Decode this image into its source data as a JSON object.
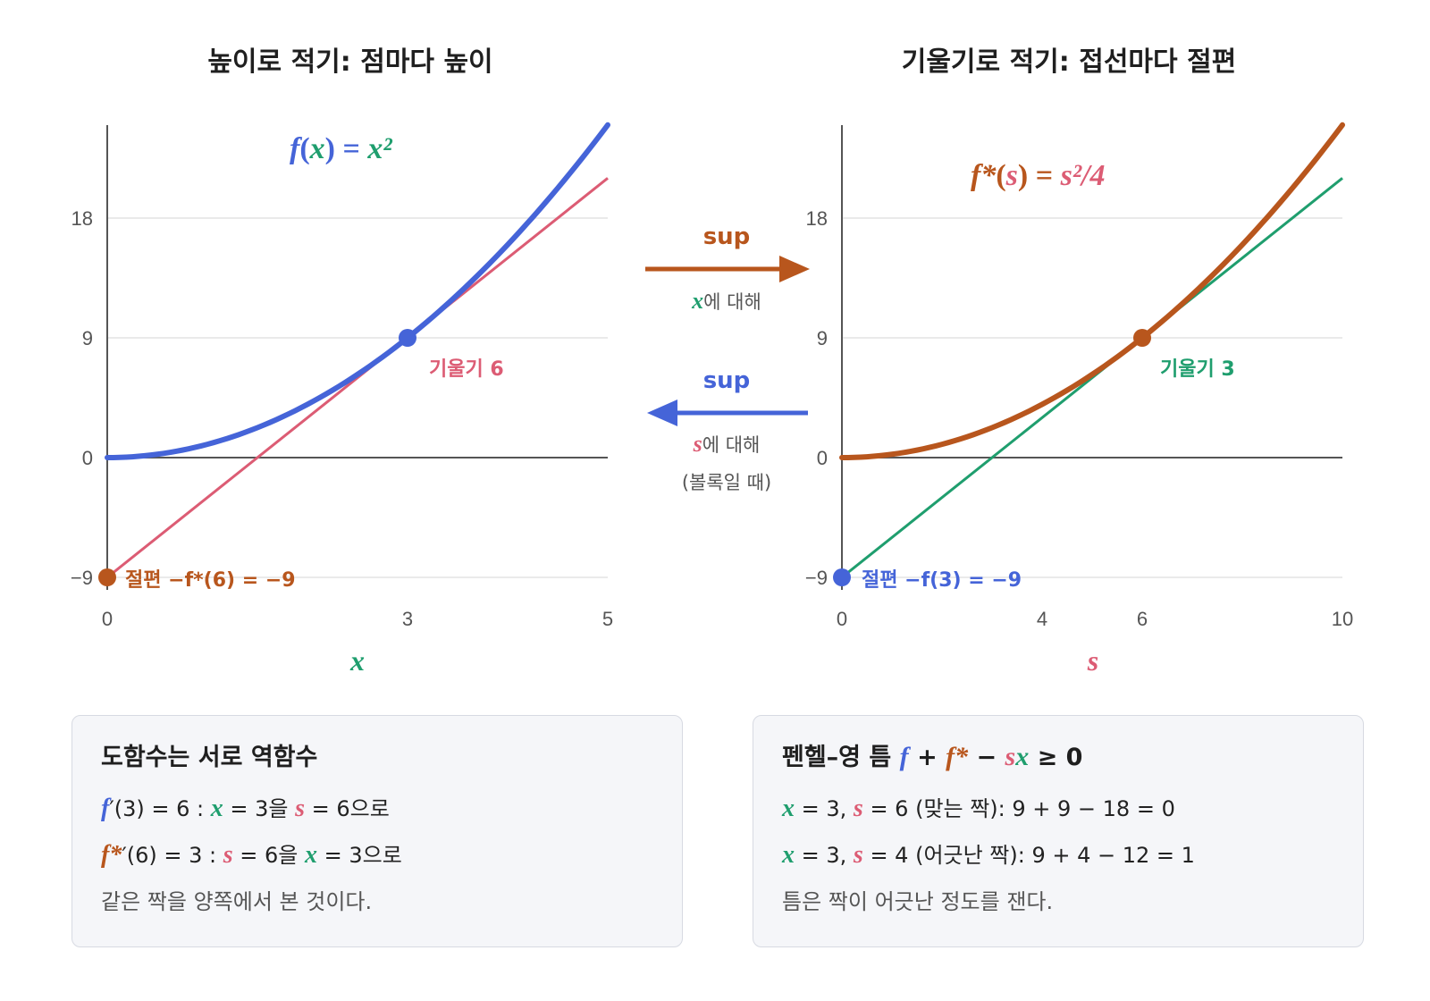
{
  "colors": {
    "blue": "#4564d8",
    "green": "#1f9e6e",
    "pink": "#dc5c74",
    "orange": "#b8561d",
    "grid": "#e3e3e3",
    "axis": "#555555"
  },
  "left_panel": {
    "title": "높이로 적기: 점마다 높이",
    "curve_label": {
      "f": "f",
      "open": "(",
      "var": "x",
      "close": ")",
      "eq": " = ",
      "rhs": "x²"
    },
    "tangent_label": "기울기 6",
    "intercept_label": "절편 −f*(6) = −9",
    "xlabel": "x"
  },
  "right_panel": {
    "title": "기울기로 적기: 접선마다 절편",
    "curve_label": {
      "f": "f*",
      "open": "(",
      "var": "s",
      "close": ")",
      "eq": " = ",
      "rhs": "s²/4"
    },
    "tangent_label": "기울기 3",
    "intercept_label": "절편 −f(3) = −9",
    "xlabel": "s"
  },
  "arrows": {
    "top": {
      "label": "sup",
      "var": "x",
      "sub": "에 대해",
      "direction": "right"
    },
    "bottom": {
      "label": "sup",
      "var": "s",
      "sub": "에 대해",
      "note": "(볼록일 때)",
      "direction": "left"
    }
  },
  "box_left": {
    "title": "도함수는 서로 역함수",
    "line1": {
      "f": "f",
      "rest1": "′(3) = 6 : ",
      "v1": "x",
      "mid": " = 3을 ",
      "v2": "s",
      "end": " = 6으로"
    },
    "line2": {
      "f": "f*",
      "rest1": "′(6) = 3 : ",
      "v1": "s",
      "mid": " = 6을 ",
      "v2": "x",
      "end": " = 3으로"
    },
    "note": "같은 짝을 양쪽에서 본 것이다."
  },
  "box_right": {
    "title_text": "펜헬–영 틈 ",
    "title_f": "f",
    "title_plus": " + ",
    "title_fs": "f*",
    "title_minus": " − ",
    "title_s": "s",
    "title_x": "x",
    "title_ge": " ≥ 0",
    "line1": {
      "v1": "x",
      "a": " = 3, ",
      "v2": "s",
      "b": " = 6 (맞는 짝): 9 + 9 − 18 = 0"
    },
    "line2": {
      "v1": "x",
      "a": " = 3, ",
      "v2": "s",
      "b": " = 4 (어긋난 짝): 9 + 4 − 12 = 1"
    },
    "note": "틈은 짝이 어긋난 정도를 잰다."
  },
  "chart_data": [
    {
      "type": "line",
      "title": "높이로 적기: 점마다 높이",
      "xlabel": "x",
      "ylabel": "",
      "xlim": [
        0,
        5
      ],
      "ylim": [
        -9,
        25
      ],
      "x_ticks": [
        0,
        3,
        5
      ],
      "y_ticks": [
        -9,
        0,
        9,
        18
      ],
      "series": [
        {
          "name": "f(x) = x²",
          "function": "x^2",
          "x": [
            0,
            1,
            2,
            3,
            4,
            5
          ],
          "values": [
            0,
            1,
            4,
            9,
            16,
            25
          ]
        },
        {
          "name": "기울기 6",
          "function": "6x - 9",
          "x": [
            0,
            5
          ],
          "values": [
            -9,
            21
          ]
        }
      ],
      "points": [
        {
          "x": 3,
          "y": 9
        },
        {
          "x": 0,
          "y": -9
        }
      ]
    },
    {
      "type": "line",
      "title": "기울기로 적기: 접선마다 절편",
      "xlabel": "s",
      "ylabel": "",
      "xlim": [
        0,
        10
      ],
      "ylim": [
        -9,
        25
      ],
      "x_ticks": [
        0,
        4,
        6,
        10
      ],
      "y_ticks": [
        -9,
        0,
        9,
        18
      ],
      "series": [
        {
          "name": "f*(s) = s²/4",
          "function": "s^2/4",
          "x": [
            0,
            2,
            4,
            6,
            8,
            10
          ],
          "values": [
            0,
            1,
            4,
            9,
            16,
            25
          ]
        },
        {
          "name": "기울기 3",
          "function": "3s - 9",
          "x": [
            0,
            10
          ],
          "values": [
            -9,
            21
          ]
        }
      ],
      "points": [
        {
          "x": 6,
          "y": 9
        },
        {
          "x": 0,
          "y": -9
        }
      ]
    }
  ]
}
